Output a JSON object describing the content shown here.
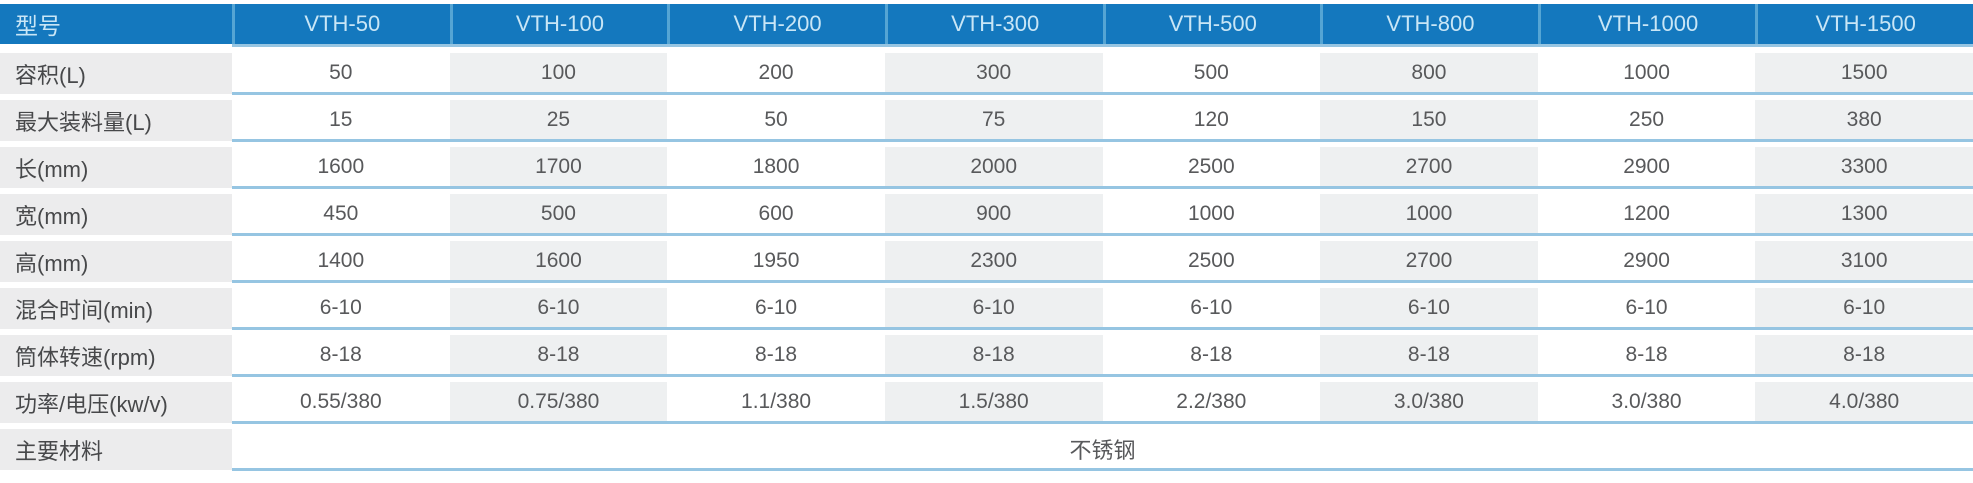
{
  "colors": {
    "header_bg": "#1478be",
    "header_divider": "#55a5d4",
    "header_text": "#c9e6f6",
    "row_line": "#96c5e2",
    "alt_column_bg": "#eef0f1",
    "label_bg": "#ececed",
    "cell_text": "#58595b",
    "label_text": "#47484a"
  },
  "table": {
    "header": {
      "label": "型号",
      "models": [
        "VTH-50",
        "VTH-100",
        "VTH-200",
        "VTH-300",
        "VTH-500",
        "VTH-800",
        "VTH-1000",
        "VTH-1500"
      ]
    },
    "rows": [
      {
        "label": "容积(L)",
        "values": [
          "50",
          "100",
          "200",
          "300",
          "500",
          "800",
          "1000",
          "1500"
        ]
      },
      {
        "label": "最大装料量(L)",
        "values": [
          "15",
          "25",
          "50",
          "75",
          "120",
          "150",
          "250",
          "380"
        ]
      },
      {
        "label": "长(mm)",
        "values": [
          "1600",
          "1700",
          "1800",
          "2000",
          "2500",
          "2700",
          "2900",
          "3300"
        ]
      },
      {
        "label": "宽(mm)",
        "values": [
          "450",
          "500",
          "600",
          "900",
          "1000",
          "1000",
          "1200",
          "1300"
        ]
      },
      {
        "label": "高(mm)",
        "values": [
          "1400",
          "1600",
          "1950",
          "2300",
          "2500",
          "2700",
          "2900",
          "3100"
        ]
      },
      {
        "label": "混合时间(min)",
        "values": [
          "6-10",
          "6-10",
          "6-10",
          "6-10",
          "6-10",
          "6-10",
          "6-10",
          "6-10"
        ]
      },
      {
        "label": "筒体转速(rpm)",
        "values": [
          "8-18",
          "8-18",
          "8-18",
          "8-18",
          "8-18",
          "8-18",
          "8-18",
          "8-18"
        ]
      },
      {
        "label": "功率/电压(kw/v)",
        "values": [
          "0.55/380",
          "0.75/380",
          "1.1/380",
          "1.5/380",
          "2.2/380",
          "3.0/380",
          "3.0/380",
          "4.0/380"
        ]
      }
    ],
    "merged_row": {
      "label": "主要材料",
      "value": "不锈钢"
    }
  }
}
